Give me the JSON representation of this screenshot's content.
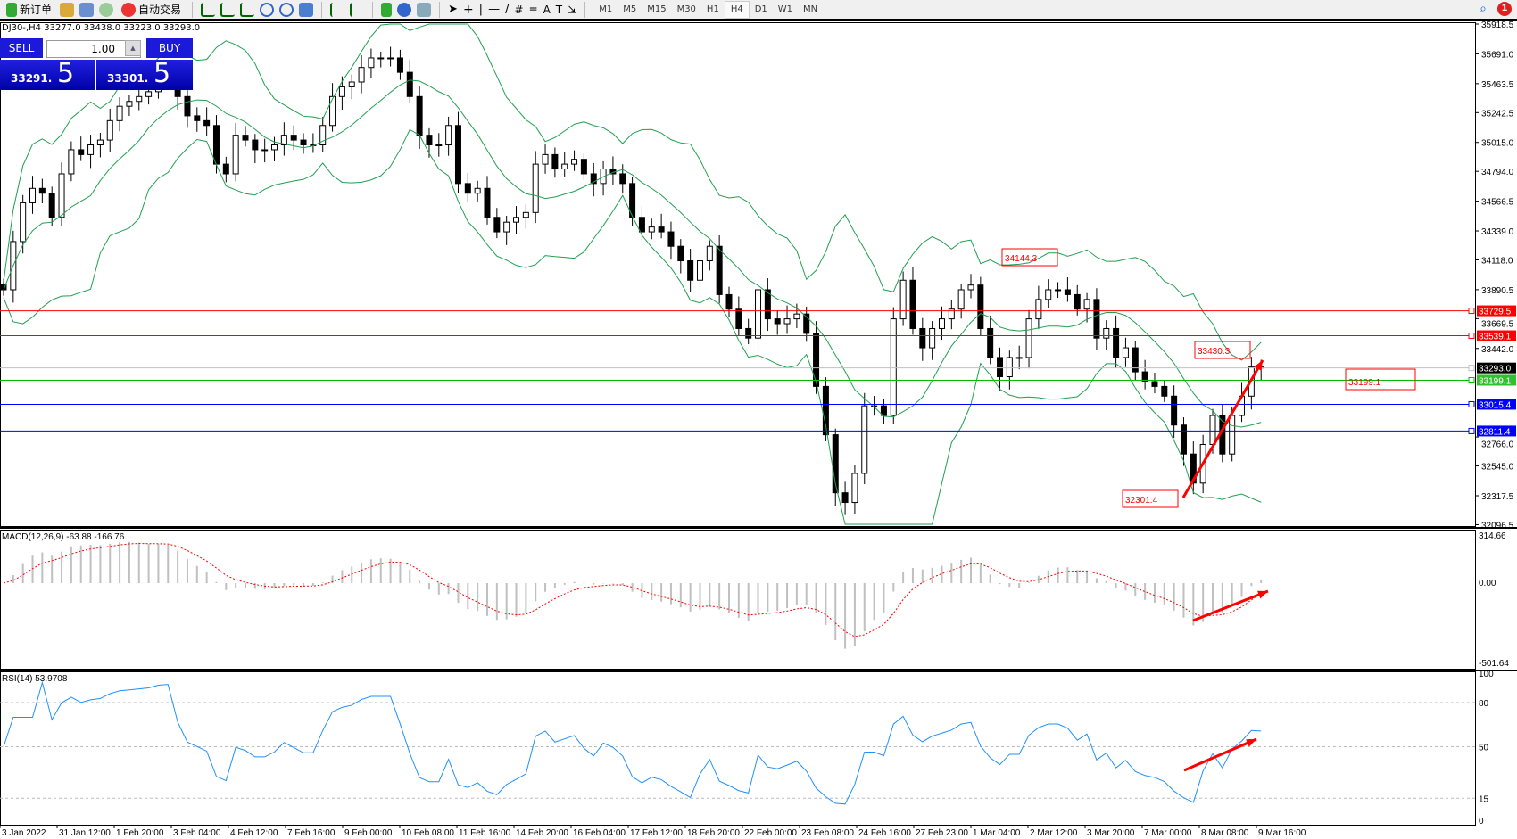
{
  "toolbar": {
    "new_order": "新订单",
    "auto_trading": "自动交易",
    "timeframes": [
      "M1",
      "M5",
      "M15",
      "M30",
      "H1",
      "H4",
      "D1",
      "W1",
      "MN"
    ],
    "active_timeframe": "H4",
    "notifications": "1"
  },
  "chart": {
    "header": "DJ30-,H4  33277.0 33438.0 33223.0 33293.0"
  },
  "trade_panel": {
    "sell": "SELL",
    "buy": "BUY",
    "lots": "1.00",
    "bid_small": "33291.",
    "bid_big": "5",
    "ask_small": "33301.",
    "ask_big": "5"
  },
  "price_axis": [
    "35918.5",
    "35691.0",
    "35463.5",
    "35242.5",
    "35015.0",
    "34794.0",
    "34566.5",
    "34339.0",
    "34118.0",
    "33890.5",
    "33669.5",
    "33442.0",
    "32766.0",
    "32545.0",
    "32317.5",
    "32096.5"
  ],
  "levels": [
    {
      "price": "33729.5",
      "color": "#ff0000",
      "label_bg": "#ff0000"
    },
    {
      "price": "33539.1",
      "color": "#ff0000",
      "label_bg": "#ff0000"
    },
    {
      "price": "33293.0",
      "color": "#c0c0c0",
      "label_bg": "#000000"
    },
    {
      "price": "33199.1",
      "color": "#00c000",
      "label_bg": "#30c030"
    },
    {
      "price": "33015.4",
      "color": "#0000ff",
      "label_bg": "#0000ff"
    },
    {
      "price": "32811.4",
      "color": "#0000ff",
      "label_bg": "#0000ff"
    }
  ],
  "annotations": {
    "high": "34144.3",
    "recent_high": "33430.3",
    "low": "32301.4",
    "level": "33199.1"
  },
  "macd": {
    "label": "MACD(12,26,9) -63.88 -166.76",
    "top": "314.66",
    "zero": "0.00",
    "bottom": "-501.64"
  },
  "rsi": {
    "label": "RSI(14) 53.9708",
    "levels": [
      "100",
      "80",
      "50",
      "15",
      "0"
    ]
  },
  "time_axis": [
    "3 Jan 2022",
    "31 Jan 12:00",
    "1 Feb 20:00",
    "3 Feb 04:00",
    "4 Feb 12:00",
    "7 Feb 16:00",
    "9 Feb 00:00",
    "10 Feb 08:00",
    "11 Feb 16:00",
    "14 Feb 20:00",
    "16 Feb 04:00",
    "17 Feb 12:00",
    "18 Feb 20:00",
    "22 Feb 00:00",
    "23 Feb 08:00",
    "24 Feb 16:00",
    "27 Feb 23:00",
    "1 Mar 04:00",
    "2 Mar 12:00",
    "3 Mar 20:00",
    "7 Mar 00:00",
    "8 Mar 08:00",
    "9 Mar 16:00"
  ],
  "colors": {
    "bollinger": "#20a050",
    "macd_signal": "#ff0000",
    "macd_hist": "#c0c0c0",
    "rsi": "#1e90ff",
    "arrow": "#ff0000"
  },
  "closes": [
    33890,
    34258,
    34554,
    34664,
    34627,
    34443,
    34775,
    34959,
    34922,
    34996,
    35033,
    35181,
    35291,
    35328,
    35365,
    35402,
    35513,
    35550,
    35365,
    35218,
    35181,
    35144,
    34849,
    34775,
    35070,
    35033,
    34959,
    34959,
    34996,
    35070,
    35033,
    34996,
    34996,
    35144,
    35365,
    35439,
    35476,
    35587,
    35660,
    35660,
    35660,
    35550,
    35365,
    35070,
    34996,
    34996,
    35144,
    34701,
    34627,
    34664,
    34443,
    34332,
    34406,
    34443,
    34480,
    34849,
    34922,
    34812,
    34849,
    34886,
    34775,
    34701,
    34812,
    34775,
    34701,
    34443,
    34332,
    34369,
    34332,
    34222,
    34111,
    33963,
    34111,
    34222,
    33853,
    33742,
    33594,
    33521,
    33890,
    33668,
    33631,
    33668,
    33705,
    33557,
    33152,
    32783,
    32340,
    32266,
    32488,
    33004,
    33004,
    32930,
    33668,
    33963,
    33594,
    33447,
    33594,
    33668,
    33742,
    33890,
    33926,
    33594,
    33373,
    33226,
    33373,
    33373,
    33668,
    33816,
    33890,
    33890,
    33853,
    33742,
    33816,
    33521,
    33594,
    33373,
    33447,
    33263,
    33189,
    33152,
    33078,
    32857,
    32636,
    32414,
    32709,
    32930,
    32636,
    32930,
    33078,
    33300,
    33293
  ]
}
